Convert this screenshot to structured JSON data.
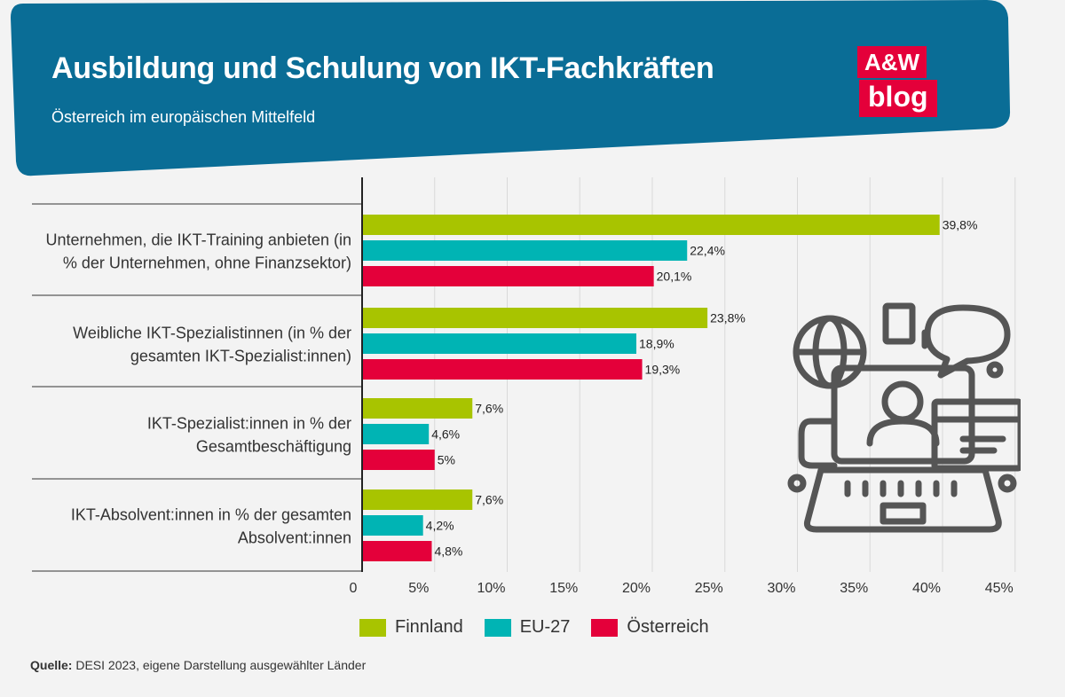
{
  "header": {
    "title": "Ausbildung und Schulung von IKT-Fachkräften",
    "subtitle": "Österreich im europäischen Mittelfeld",
    "bg_color": "#0a6d96"
  },
  "logo": {
    "line1": "A&W",
    "line2": "blog",
    "color": "#e4003a"
  },
  "chart_data": {
    "type": "bar",
    "orientation": "horizontal",
    "categories": [
      [
        "Unternehmen, die IKT-Training anbieten (in",
        "% der Unternehmen, ohne Finanzsektor)"
      ],
      [
        "Weibliche IKT-Spezialistinnen (in % der",
        "gesamten IKT-Spezialist:innen)"
      ],
      [
        "IKT-Spezialist:innen in % der",
        "Gesamtbeschäftigung"
      ],
      [
        "IKT-Absolvent:innen in % der gesamten",
        "Absolvent:innen"
      ]
    ],
    "series": [
      {
        "name": "Finnland",
        "color": "#a8c400",
        "values": [
          39.8,
          23.8,
          7.6,
          7.6
        ],
        "labels": [
          "39,8%",
          "23,8%",
          "7,6%",
          "7,6%"
        ]
      },
      {
        "name": "EU-27",
        "color": "#00b4b4",
        "values": [
          22.4,
          18.9,
          4.6,
          4.2
        ],
        "labels": [
          "22,4%",
          "18,9%",
          "4,6%",
          "4,2%"
        ]
      },
      {
        "name": "Österreich",
        "color": "#e4003a",
        "values": [
          20.1,
          19.3,
          5,
          4.8
        ],
        "labels": [
          "20,1%",
          "19,3%",
          "5%",
          "4,8%"
        ]
      }
    ],
    "xlim": [
      0,
      45
    ],
    "xticks": [
      0,
      5,
      10,
      15,
      20,
      25,
      30,
      35,
      40,
      45
    ],
    "xtick_labels": [
      "0",
      "5%",
      "10%",
      "15%",
      "20%",
      "25%",
      "30%",
      "35%",
      "40%",
      "45%"
    ],
    "grid": true,
    "legend": "bottom"
  },
  "decoration": {
    "icon": "online-training-illustration-icon"
  },
  "source": {
    "label": "Quelle:",
    "text": " DESI 2023, eigene Darstellung ausgewählter Länder"
  }
}
